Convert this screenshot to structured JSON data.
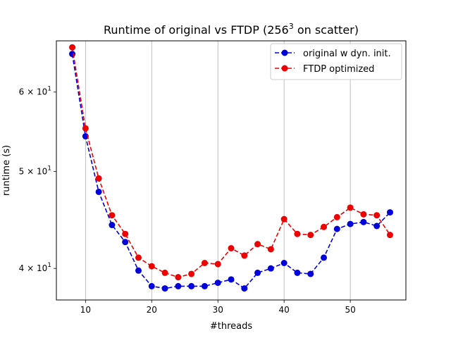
{
  "chart_data": {
    "type": "line",
    "title_main": "Runtime of original vs FTDP (256",
    "title_sup": "3",
    "title_rest": " on scatter)",
    "xlabel": "#threads",
    "ylabel": "runtime (s)",
    "xlim": [
      5.6,
      58.4
    ],
    "ylim": [
      37.2,
      67.5
    ],
    "yscale": "log",
    "grid": "vertical lines at x ticks",
    "legend_position": "top-right",
    "x_ticks": [
      10,
      20,
      30,
      40,
      50
    ],
    "x_tick_labels": [
      "10",
      "20",
      "30",
      "40",
      "50"
    ],
    "y_ticks": [
      40,
      50,
      60
    ],
    "y_tick_labels": [
      {
        "base": "4 × 10",
        "exp": "1"
      },
      {
        "base": "5 × 10",
        "exp": "1"
      },
      {
        "base": "6 × 10",
        "exp": "1"
      }
    ],
    "x": [
      8,
      10,
      12,
      14,
      16,
      18,
      20,
      22,
      24,
      26,
      28,
      30,
      32,
      34,
      36,
      38,
      40,
      42,
      44,
      46,
      48,
      50,
      52,
      54,
      56
    ],
    "series": [
      {
        "name": "original w dyn. init.",
        "color": "#0000dd",
        "values": [
          65.5,
          54.2,
          47.7,
          44.2,
          42.5,
          39.8,
          38.4,
          38.2,
          38.4,
          38.4,
          38.4,
          38.7,
          39.0,
          38.2,
          39.6,
          40.0,
          40.5,
          39.6,
          39.5,
          41.0,
          43.8,
          44.3,
          44.5,
          44.1,
          45.5
        ]
      },
      {
        "name": "FTDP optimized",
        "color": "#ee0000",
        "values": [
          66.5,
          55.2,
          49.2,
          45.2,
          43.3,
          41.0,
          40.2,
          39.6,
          39.2,
          39.5,
          40.5,
          40.4,
          41.9,
          41.2,
          42.3,
          41.8,
          44.8,
          43.3,
          43.2,
          44.0,
          45.0,
          46.0,
          45.3,
          45.2,
          43.2
        ]
      }
    ]
  }
}
